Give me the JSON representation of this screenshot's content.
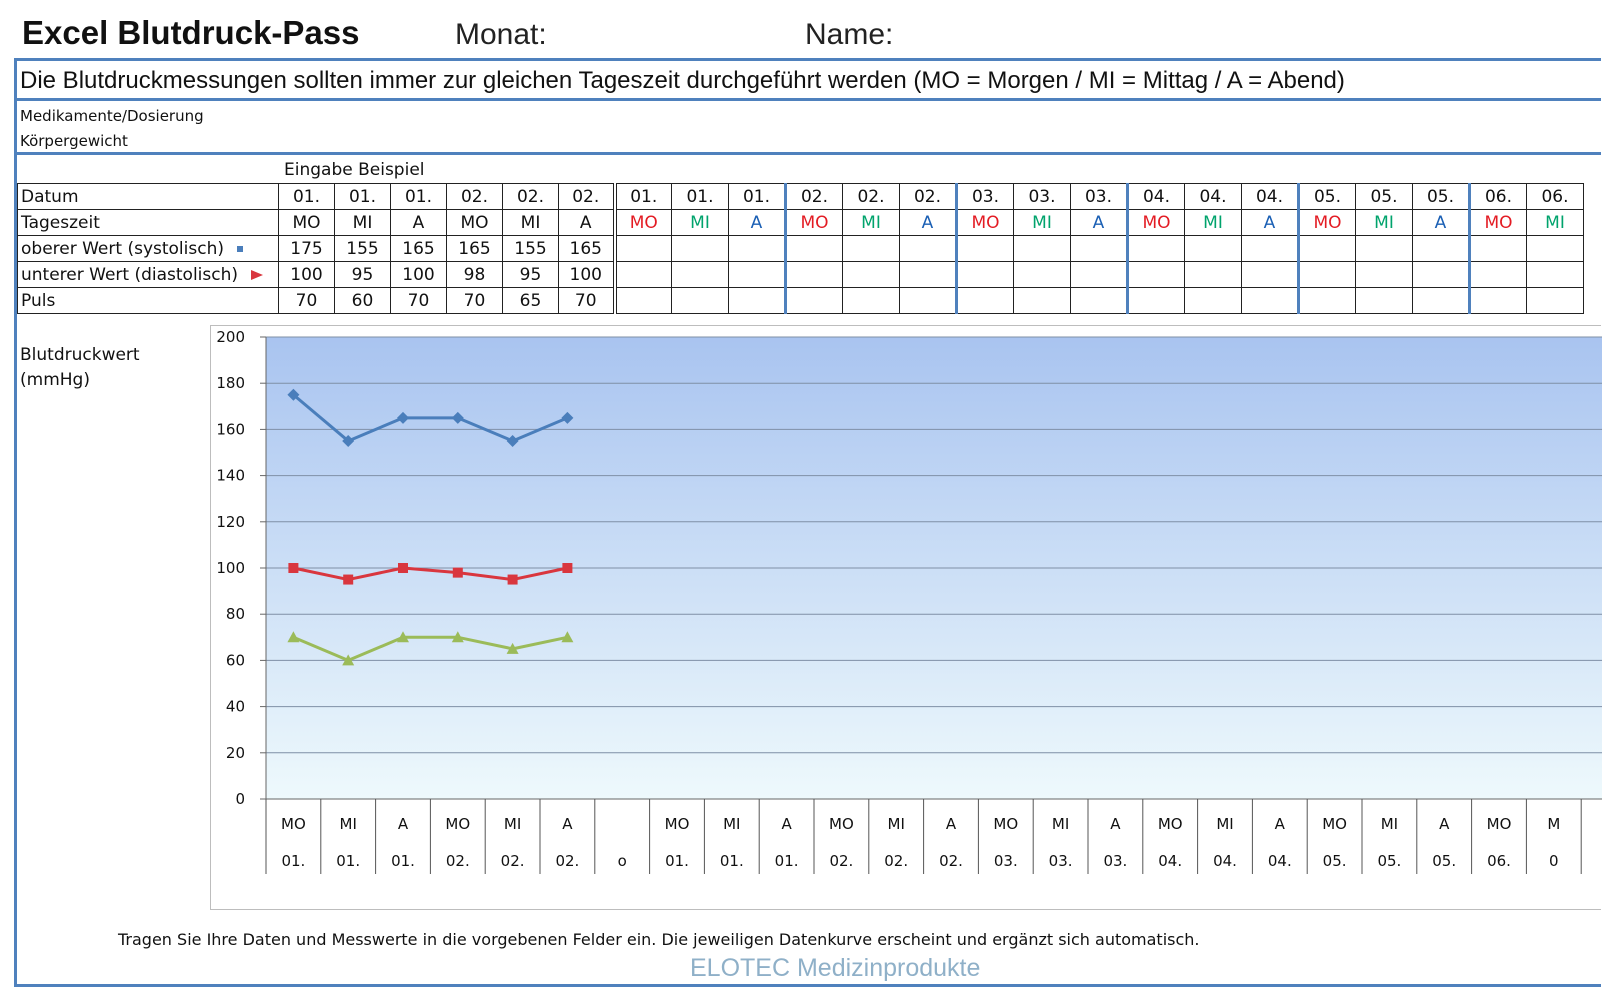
{
  "header": {
    "title": "Excel Blutdruck-Pass",
    "monat_label": "Monat:",
    "name_label": "Name:"
  },
  "instruction": "Die Blutdruckmessungen sollten immer zur gleichen Tageszeit durchgeführt werden  (MO = Morgen / MI = Mittag / A = Abend)",
  "info": {
    "meds_label": "Medikamente/Dosierung",
    "weight_label": "Körpergewicht"
  },
  "table": {
    "example_label": "Eingabe Beispiel",
    "row_labels": {
      "datum": "Datum",
      "tageszeit": "Tageszeit",
      "oberer": "oberer Wert (systolisch)",
      "unterer": "unterer Wert (diastolisch)",
      "puls": "Puls"
    },
    "example_dates": [
      "01.",
      "01.",
      "01.",
      "02.",
      "02.",
      "02."
    ],
    "example_times": [
      "MO",
      "MI",
      "A",
      "MO",
      "MI",
      "A"
    ],
    "example_systolic": [
      "175",
      "155",
      "165",
      "165",
      "155",
      "165"
    ],
    "example_diastolic": [
      "100",
      "95",
      "100",
      "98",
      "95",
      "100"
    ],
    "example_pulse": [
      "70",
      "60",
      "70",
      "70",
      "65",
      "70"
    ],
    "entry_dates": [
      "01.",
      "01.",
      "01.",
      "02.",
      "02.",
      "02.",
      "03.",
      "03.",
      "03.",
      "04.",
      "04.",
      "04.",
      "05.",
      "05.",
      "05.",
      "06.",
      "06."
    ],
    "entry_times": [
      "MO",
      "MI",
      "A",
      "MO",
      "MI",
      "A",
      "MO",
      "MI",
      "A",
      "MO",
      "MI",
      "A",
      "MO",
      "MI",
      "A",
      "MO",
      "MI"
    ]
  },
  "chart_data": {
    "type": "line",
    "ylabel": "Blutdruckwert (mmHg)",
    "ylim": [
      0,
      200
    ],
    "ytick_step": 20,
    "grid": true,
    "x_tick_labels": [
      [
        "MO",
        "01."
      ],
      [
        "MI",
        "01."
      ],
      [
        "A",
        "01."
      ],
      [
        "MO",
        "02."
      ],
      [
        "MI",
        "02."
      ],
      [
        "A",
        "02."
      ],
      [
        "",
        "o"
      ],
      [
        "MO",
        "01."
      ],
      [
        "MI",
        "01."
      ],
      [
        "A",
        "01."
      ],
      [
        "MO",
        "02."
      ],
      [
        "MI",
        "02."
      ],
      [
        "A",
        "02."
      ],
      [
        "MO",
        "03."
      ],
      [
        "MI",
        "03."
      ],
      [
        "A",
        "03."
      ],
      [
        "MO",
        "04."
      ],
      [
        "MI",
        "04."
      ],
      [
        "A",
        "04."
      ],
      [
        "MO",
        "05."
      ],
      [
        "MI",
        "05."
      ],
      [
        "A",
        "05."
      ],
      [
        "MO",
        "06."
      ],
      [
        "M",
        "0"
      ]
    ],
    "series": [
      {
        "key": "systolic",
        "values": [
          175,
          155,
          165,
          165,
          155,
          165
        ],
        "color": "#4a7ebb",
        "marker": "diamond"
      },
      {
        "key": "diastolic",
        "values": [
          100,
          95,
          100,
          98,
          95,
          100
        ],
        "color": "#d9363e",
        "marker": "square"
      },
      {
        "key": "pulse",
        "values": [
          70,
          60,
          70,
          70,
          65,
          70
        ],
        "color": "#9bbb59",
        "marker": "triangle"
      }
    ]
  },
  "footer": {
    "note": "Tragen Sie Ihre Daten und Messwerte in die vorgebenen Felder ein. Die jeweiligen Datenkurve erscheint und ergänzt sich automatisch.",
    "brand": "ELOTEC Medizinprodukte"
  },
  "colors": {
    "frame_blue": "#4f81bd",
    "mo_red": "#e31b23",
    "mi_green": "#00a36c",
    "a_blue": "#1a5fb4",
    "plot_top": "#a9c4f0",
    "plot_bottom": "#eef9fc"
  }
}
